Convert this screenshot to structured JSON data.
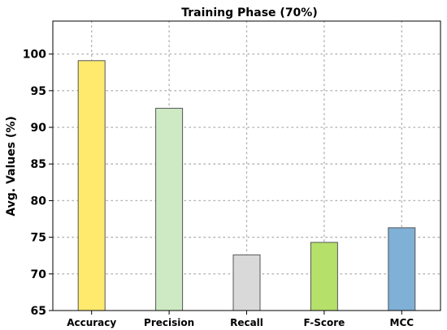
{
  "chart_data": {
    "type": "bar",
    "title": "Training Phase (70%)",
    "xlabel": "",
    "ylabel": "Avg. Values (%)",
    "categories": [
      "Accuracy",
      "Precision",
      "Recall",
      "F-Score",
      "MCC"
    ],
    "values": [
      99.1,
      92.6,
      72.6,
      74.3,
      76.3
    ],
    "colors": [
      "#ffea6e",
      "#cdeac4",
      "#d9d9d9",
      "#b5e06a",
      "#7fb0d6"
    ],
    "ylim": [
      65,
      104.5
    ],
    "yticks": [
      65,
      70,
      75,
      80,
      85,
      90,
      95,
      100
    ],
    "grid": true,
    "legend": "none"
  }
}
